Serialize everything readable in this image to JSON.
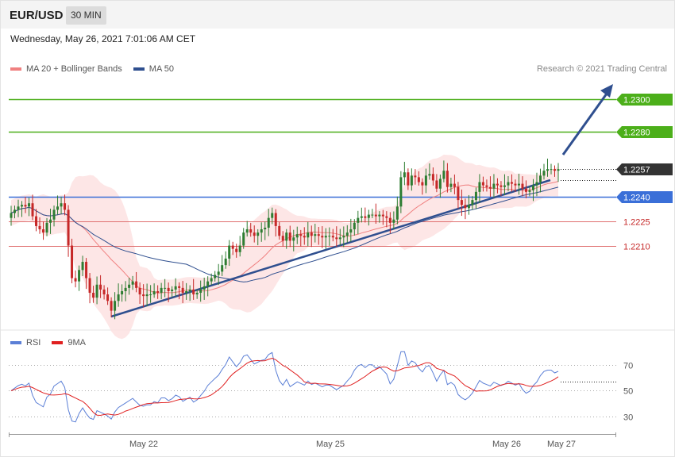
{
  "header": {
    "pair": "EUR/USD",
    "timeframe": "30 MIN"
  },
  "datetime": "Wednesday, May 26, 2021 7:01:06 AM CET",
  "legend": {
    "ma20": {
      "label": "MA 20 + Bollinger Bands",
      "color": "#f08080"
    },
    "ma50": {
      "label": "MA 50",
      "color": "#2f4f8f"
    }
  },
  "credit": "Research © 2021 Trading Central",
  "rsi_legend": {
    "rsi": {
      "label": "RSI",
      "color": "#5b7fd6"
    },
    "ma9": {
      "label": "9MA",
      "color": "#e02020"
    }
  },
  "colors": {
    "bull": "#2e7d32",
    "bear": "#c62828",
    "resistance": "#4caf1a",
    "support": "#3a6fd8",
    "pivot": "#333333",
    "minor": "#e07070",
    "trend": "#2f4f8f",
    "band": "#fde2e2"
  },
  "chart_data": [
    {
      "type": "candlestick",
      "title": "EUR/USD 30 MIN",
      "x_ticks": [
        "May 22",
        "May 25",
        "May 26",
        "May 27"
      ],
      "ylim": [
        1.2162,
        1.2318
      ],
      "levels": [
        {
          "value": 1.23,
          "label": "1.2300",
          "kind": "resistance"
        },
        {
          "value": 1.228,
          "label": "1.2280",
          "kind": "resistance"
        },
        {
          "value": 1.2257,
          "label": "1.2257",
          "kind": "pivot"
        },
        {
          "value": 1.224,
          "label": "1.2240",
          "kind": "support"
        },
        {
          "value": 1.2225,
          "label": "1.2225",
          "kind": "minor"
        },
        {
          "value": 1.221,
          "label": "1.2210",
          "kind": "minor"
        }
      ],
      "series": [
        {
          "name": "MA 20 + Bollinger Bands"
        },
        {
          "name": "MA 50"
        }
      ],
      "close": [
        1.223,
        1.2232,
        1.2234,
        1.2235,
        1.2234,
        1.2236,
        1.2228,
        1.2222,
        1.222,
        1.2218,
        1.2224,
        1.2226,
        1.2232,
        1.2234,
        1.2236,
        1.2232,
        1.221,
        1.219,
        1.2188,
        1.2195,
        1.22,
        1.219,
        1.2181,
        1.2178,
        1.2186,
        1.2183,
        1.218,
        1.2176,
        1.217,
        1.2176,
        1.218,
        1.2182,
        1.2184,
        1.2186,
        1.2188,
        1.2184,
        1.218,
        1.2179,
        1.218,
        1.218,
        1.2182,
        1.2181,
        1.2184,
        1.2184,
        1.2182,
        1.2183,
        1.2185,
        1.2184,
        1.2181,
        1.2182,
        1.2183,
        1.218,
        1.2181,
        1.2183,
        1.2185,
        1.2188,
        1.219,
        1.2192,
        1.2194,
        1.2198,
        1.2202,
        1.221,
        1.2208,
        1.2206,
        1.221,
        1.2218,
        1.222,
        1.2218,
        1.2216,
        1.2218,
        1.222,
        1.2221,
        1.2227,
        1.223,
        1.2222,
        1.2216,
        1.2213,
        1.2218,
        1.2213,
        1.2215,
        1.2217,
        1.2216,
        1.2215,
        1.2218,
        1.2216,
        1.2217,
        1.2216,
        1.2215,
        1.2216,
        1.2216,
        1.2215,
        1.2214,
        1.2215,
        1.2216,
        1.2218,
        1.222,
        1.2224,
        1.2227,
        1.2228,
        1.2227,
        1.2229,
        1.2229,
        1.2228,
        1.2229,
        1.2228,
        1.2227,
        1.2224,
        1.2226,
        1.2234,
        1.2252,
        1.2255,
        1.2247,
        1.2253,
        1.2252,
        1.2249,
        1.2247,
        1.2253,
        1.2254,
        1.225,
        1.2245,
        1.2251,
        1.2256,
        1.2246,
        1.2248,
        1.2246,
        1.2238,
        1.2235,
        1.2233,
        1.2235,
        1.2238,
        1.2243,
        1.2249,
        1.2247,
        1.2246,
        1.2245,
        1.2248,
        1.2247,
        1.2246,
        1.2247,
        1.2249,
        1.2248,
        1.2247,
        1.2248,
        1.2245,
        1.2243,
        1.2244,
        1.2247,
        1.2249,
        1.2253,
        1.2256,
        1.2257,
        1.2257,
        1.2256,
        1.2257
      ]
    },
    {
      "type": "line",
      "title": "RSI",
      "ylim": [
        21,
        82
      ],
      "y_ticks": [
        30,
        50,
        70
      ],
      "series": [
        {
          "name": "RSI"
        },
        {
          "name": "9MA"
        }
      ]
    }
  ]
}
